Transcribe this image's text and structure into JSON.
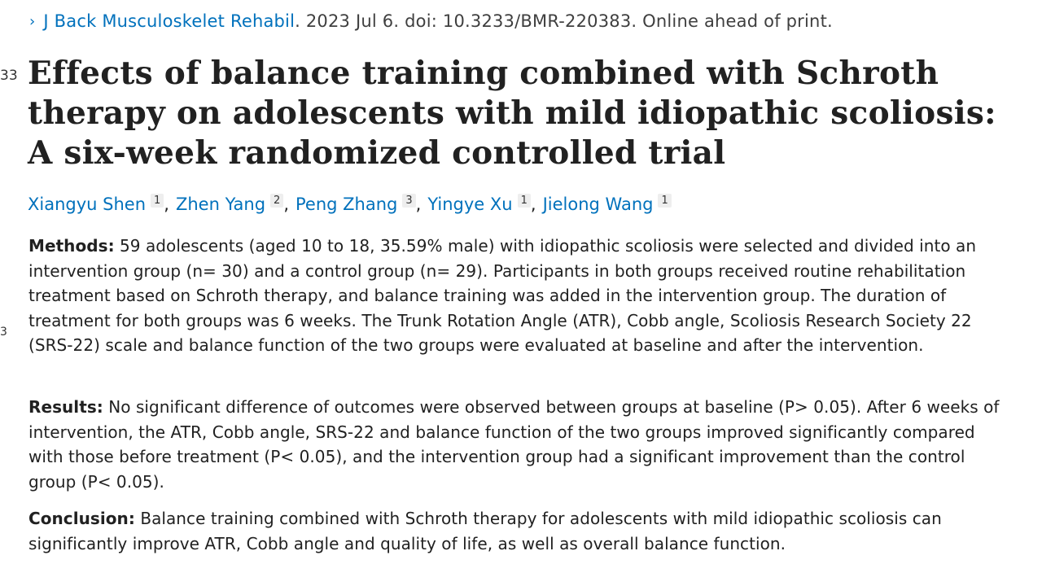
{
  "left_edge_fragments": [
    "33",
    "3"
  ],
  "citation": {
    "journal": "J Back Musculoskelet Rehabil",
    "details": ". 2023 Jul 6. doi: 10.3233/BMR-220383. Online ahead of print."
  },
  "title": "Effects of balance training combined with Schroth therapy on adolescents with mild idiopathic scoliosis: A six-week randomized controlled trial",
  "authors": [
    {
      "name": "Xiangyu Shen",
      "aff": "1"
    },
    {
      "name": "Zhen Yang",
      "aff": "2"
    },
    {
      "name": "Peng Zhang",
      "aff": "3"
    },
    {
      "name": "Yingye Xu",
      "aff": "1"
    },
    {
      "name": "Jielong Wang",
      "aff": "1"
    }
  ],
  "author_separator": ",",
  "abstract": {
    "methods": {
      "label": "Methods:",
      "text": " 59 adolescents (aged 10 to 18, 35.59% male) with idiopathic scoliosis were selected and divided into an intervention group (n= 30) and a control group (n= 29). Participants in both groups received routine rehabilitation treatment based on Schroth therapy, and balance training was added in the intervention group. The duration of treatment for both groups was 6 weeks. The Trunk Rotation Angle (ATR), Cobb angle, Scoliosis Research Society 22 (SRS-22) scale and balance function of the two groups were evaluated at baseline and after the intervention."
    },
    "results": {
      "label": "Results:",
      "text": " No significant difference of outcomes were observed between groups at baseline (P> 0.05). After 6 weeks of intervention, the ATR, Cobb angle, SRS-22 and balance function of the two groups improved significantly compared with those before treatment (P< 0.05), and the intervention group had a significant improvement than the control group (P< 0.05)."
    },
    "conclusion": {
      "label": "Conclusion:",
      "text": " Balance training combined with Schroth therapy for adolescents with mild idiopathic scoliosis can significantly improve ATR, Cobb angle and quality of life, as well as overall balance function."
    }
  },
  "colors": {
    "link": "#0071bc",
    "text": "#212121",
    "muted": "#3f3f3f",
    "badge_bg": "#eeeeee"
  }
}
